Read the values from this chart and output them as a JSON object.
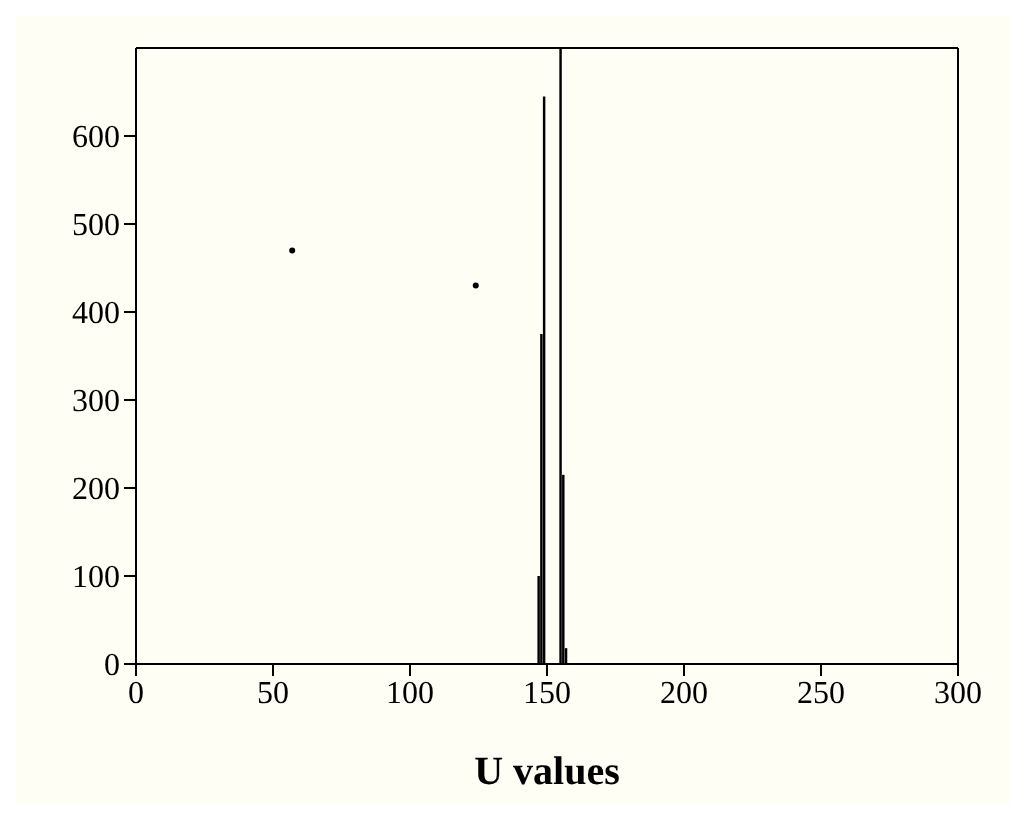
{
  "chart_data": {
    "type": "bar",
    "xlabel": "U values",
    "xlim": [
      0,
      300
    ],
    "xticks": [
      0,
      50,
      100,
      150,
      200,
      250,
      300
    ],
    "ylim": [
      0,
      700
    ],
    "yticks": [
      0,
      100,
      200,
      300,
      400,
      500,
      600
    ],
    "grid": false,
    "legend": false,
    "marker": "circle",
    "series": [
      {
        "color": "#000000",
        "x": [
          147,
          148,
          149,
          155,
          156,
          157
        ],
        "values": [
          100,
          375,
          645,
          700,
          215,
          18
        ]
      },
      {
        "type": "scatter",
        "color": "#000000",
        "x": [
          57,
          124
        ],
        "values": [
          470,
          430
        ]
      }
    ]
  }
}
